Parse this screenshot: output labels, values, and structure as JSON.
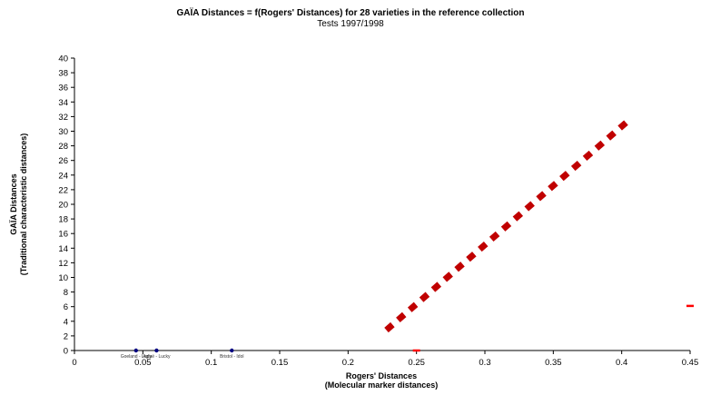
{
  "chart_data": {
    "type": "scatter",
    "title": "GAÏA Distances = f(Rogers' Distances) for 28 varieties in the reference collection",
    "subtitle": "Tests 1997/1998",
    "xlabel": "Rogers' Distances",
    "xlabel2": "(Molecular marker distances)",
    "ylabel": "GAÏA Distances",
    "ylabel2": "(Traditional characteristic distances)",
    "xlim": [
      0,
      0.45
    ],
    "ylim": [
      0,
      40
    ],
    "x_ticks": [
      "0",
      "0.05",
      "0.1",
      "0.15",
      "0.2",
      "0.25",
      "0.3",
      "0.35",
      "0.4",
      "0.45"
    ],
    "y_ticks": [
      "0",
      "2",
      "4",
      "6",
      "8",
      "10",
      "12",
      "14",
      "16",
      "18",
      "20",
      "22",
      "24",
      "26",
      "28",
      "30",
      "32",
      "34",
      "36",
      "38",
      "40"
    ],
    "grid": false,
    "series": [
      {
        "kind": "line",
        "style": "dashed",
        "color": "#c00000",
        "x": [
          0.228,
          0.404
        ],
        "y": [
          2.8,
          31.3
        ]
      },
      {
        "kind": "points",
        "color": "#000080",
        "points": [
          {
            "x": 0.045,
            "y": 0,
            "label": "Goeland - Lady"
          },
          {
            "x": 0.06,
            "y": 0,
            "label": "Aglaé - Lucky"
          },
          {
            "x": 0.115,
            "y": 0,
            "label": "Bristol - Idol"
          }
        ]
      },
      {
        "kind": "marks",
        "color": "#ff0000",
        "points": [
          {
            "x": 0.25,
            "y": 0
          },
          {
            "x": 0.45,
            "y": 6.1
          }
        ]
      }
    ]
  }
}
